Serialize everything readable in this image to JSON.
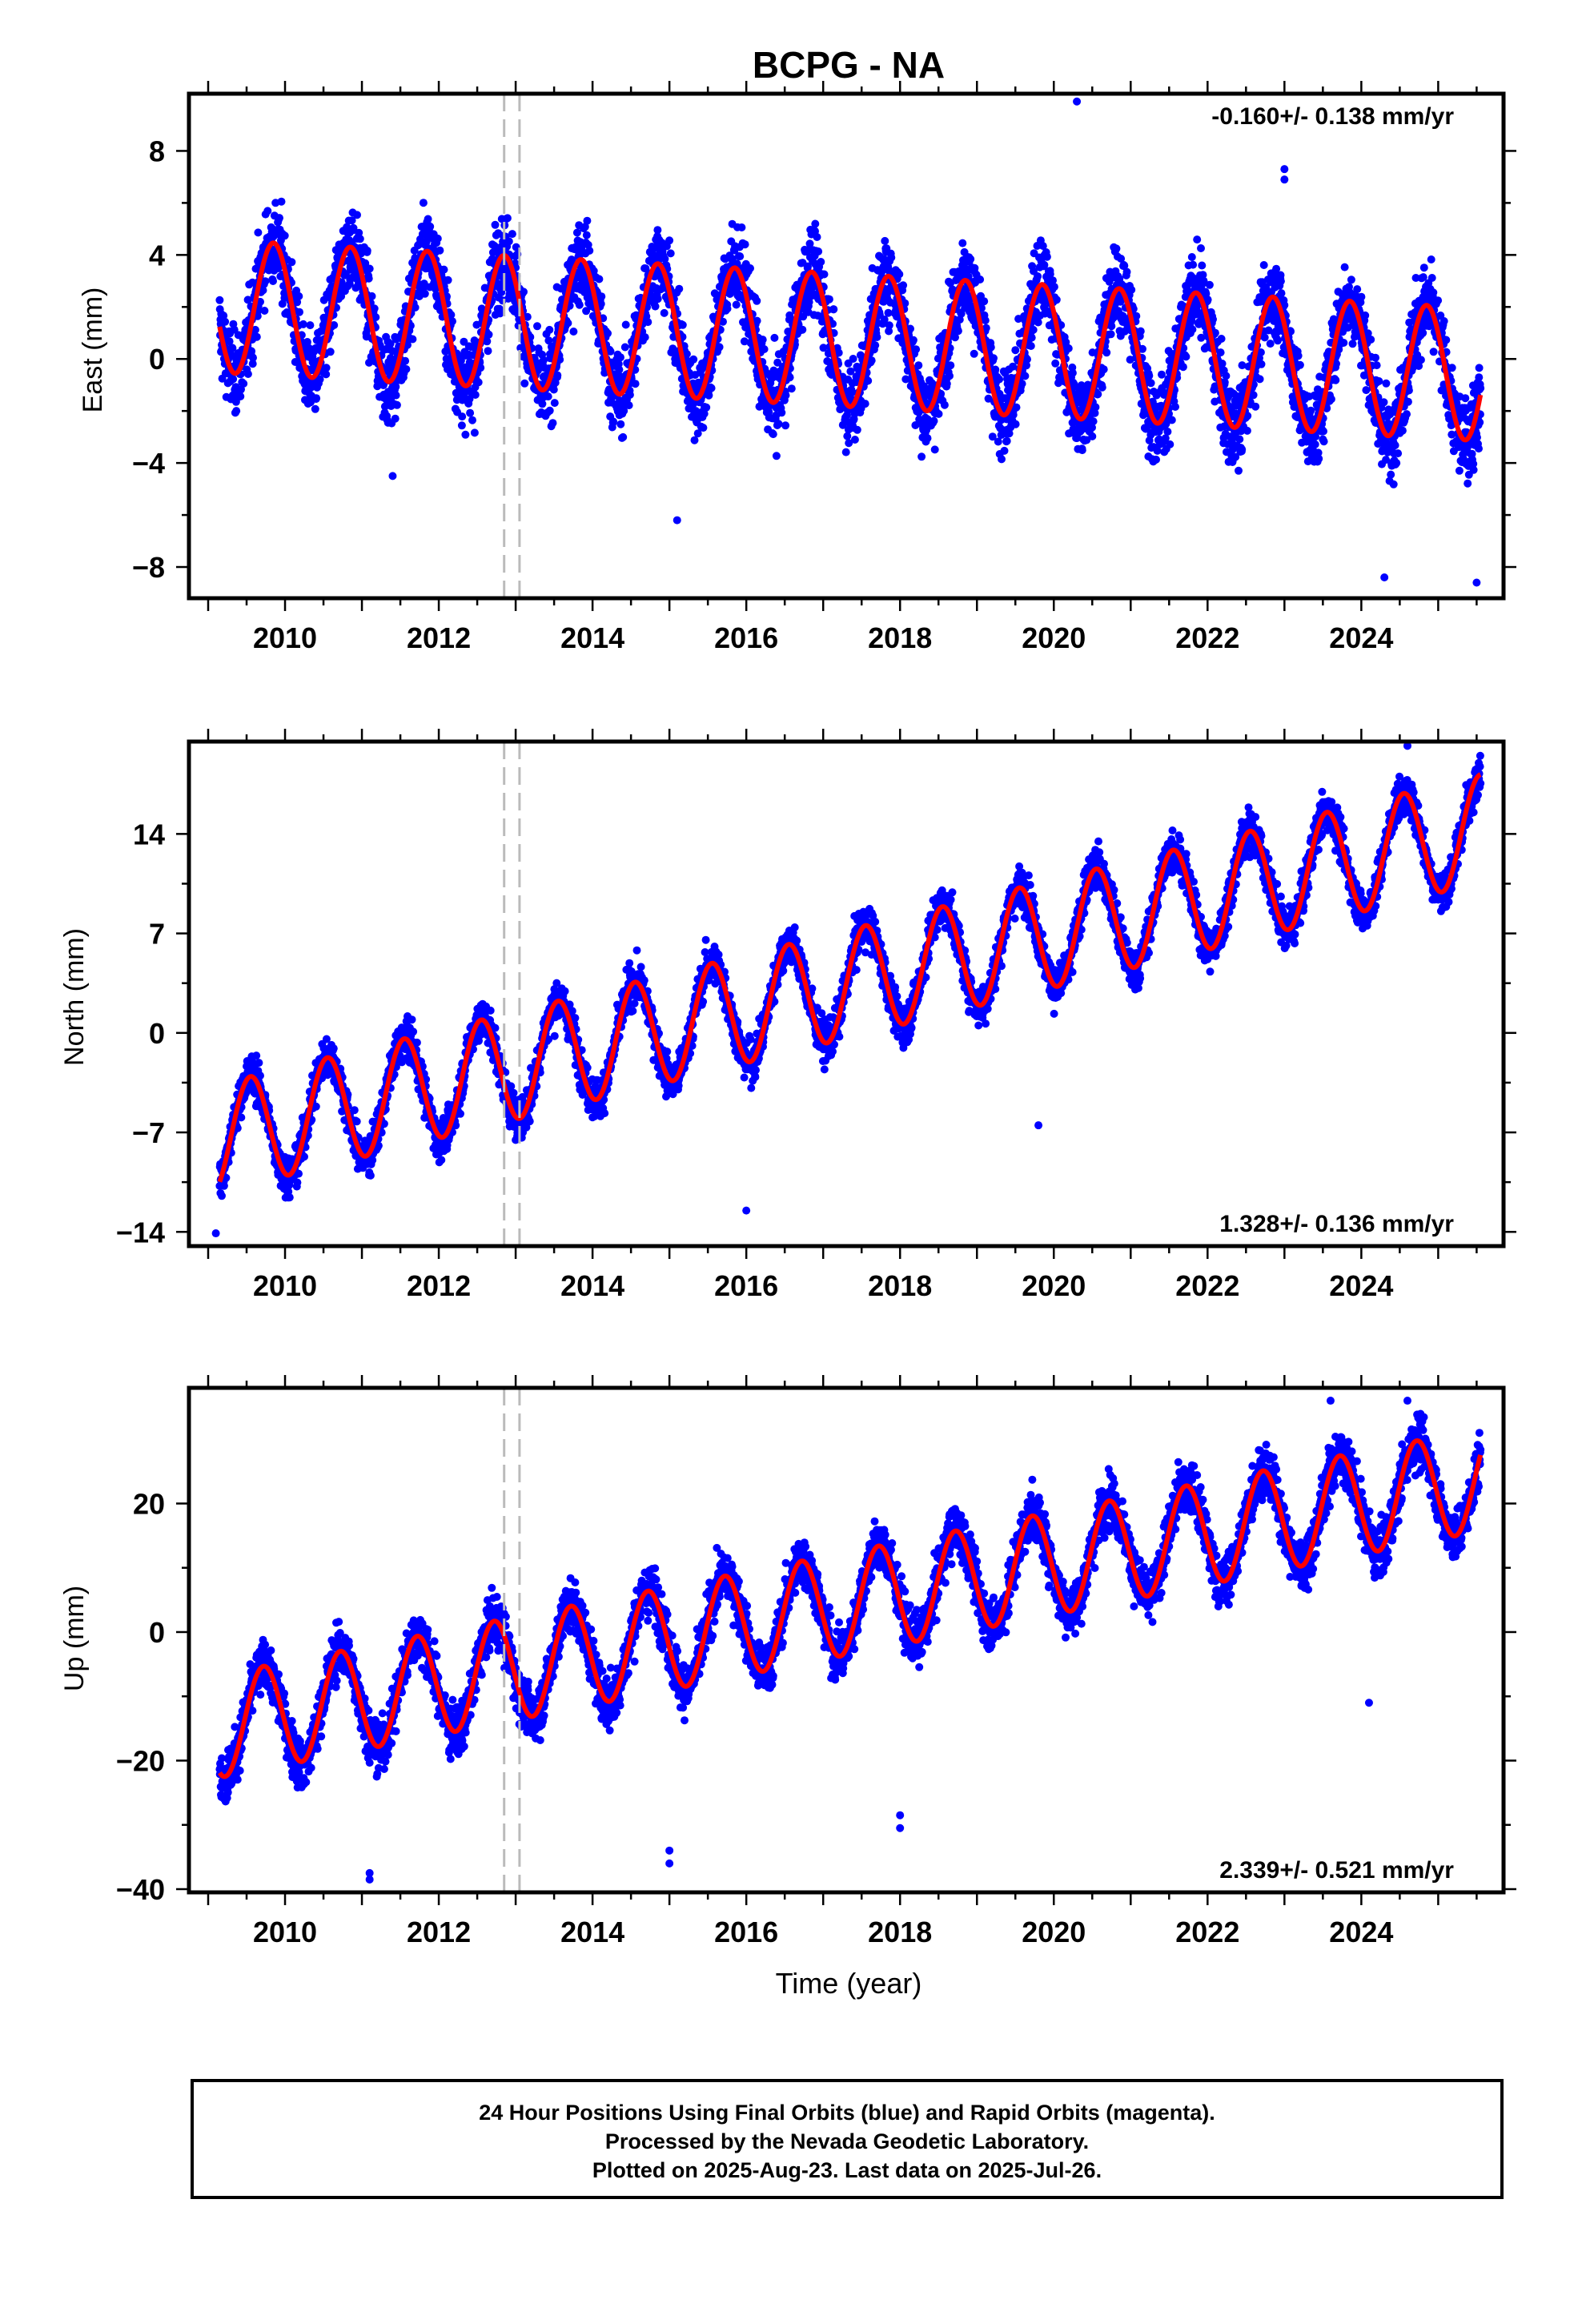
{
  "colors": {
    "points": "#0000ff",
    "model": "#ff0000",
    "step": "#bbbbbb",
    "frame": "#000000"
  },
  "caption": {
    "line1": "24 Hour Positions Using Final Orbits (blue) and Rapid Orbits (magenta).",
    "line2": "Processed by the Nevada Geodetic Laboratory.",
    "line3": "Plotted on 2025-Aug-23. Last data on 2025-Jul-26."
  },
  "chart_data": [
    {
      "type": "scatter",
      "title": "BCPG - NA",
      "xlabel": "",
      "ylabel": "East (mm)",
      "xlim": [
        2008.75,
        2025.85
      ],
      "ylim": [
        -9.2,
        10.2
      ],
      "xticks": [
        2010,
        2012,
        2014,
        2016,
        2018,
        2020,
        2022,
        2024
      ],
      "yticks": [
        -8,
        -4,
        0,
        4,
        8
      ],
      "rate_label": "-0.160+/- 0.138 mm/yr",
      "rate_position": "top-right",
      "grid": false,
      "step_lines": [
        2012.85,
        2013.05
      ],
      "model": {
        "start": 2009.15,
        "end": 2025.55,
        "intercept": 2.05,
        "trend": -0.16,
        "amplitude": 2.55,
        "peak_phase": 0.85,
        "scatter": 1.4
      },
      "series": [
        {
          "values_summary": "daily positions, ~2009.1-2025.6, annual oscillation about a slight downward trend"
        }
      ],
      "outliers": [
        [
          2020.3,
          9.9
        ],
        [
          2023.0,
          7.3
        ],
        [
          2023.0,
          6.9
        ],
        [
          2011.4,
          -4.5
        ],
        [
          2015.1,
          -6.2
        ],
        [
          2024.3,
          -8.4
        ],
        [
          2025.5,
          -8.6
        ]
      ]
    },
    {
      "type": "scatter",
      "title": "",
      "xlabel": "",
      "ylabel": "North (mm)",
      "xlim": [
        2008.75,
        2025.85
      ],
      "ylim": [
        -15,
        20.5
      ],
      "xticks": [
        2010,
        2012,
        2014,
        2016,
        2018,
        2020,
        2022,
        2024
      ],
      "yticks": [
        -14,
        -7,
        0,
        7,
        14
      ],
      "rate_label": "1.328+/- 0.136 mm/yr",
      "rate_position": "bottom-right",
      "grid": false,
      "step_lines": [
        2012.85,
        2013.05
      ],
      "model": {
        "start": 2009.15,
        "end": 2025.55,
        "intercept": -7.6,
        "trend": 1.328,
        "amplitude": 3.8,
        "peak_phase": 0.55,
        "scatter": 1.3
      },
      "series": [
        {
          "values_summary": "daily positions, ~2009.1-2025.6, annual oscillation about an upward trend"
        }
      ],
      "outliers": [
        [
          2024.6,
          20.2
        ],
        [
          2016.0,
          -12.5
        ],
        [
          2019.8,
          -6.5
        ],
        [
          2009.1,
          -14.1
        ]
      ]
    },
    {
      "type": "scatter",
      "title": "",
      "xlabel": "Time (year)",
      "ylabel": "Up (mm)",
      "xlim": [
        2008.75,
        2025.85
      ],
      "ylim": [
        -40.5,
        38
      ],
      "xticks": [
        2010,
        2012,
        2014,
        2016,
        2018,
        2020,
        2022,
        2024
      ],
      "yticks": [
        -40,
        -20,
        0,
        20
      ],
      "rate_label": "2.339+/- 0.521 mm/yr",
      "rate_position": "bottom-right",
      "grid": false,
      "step_lines": [
        2012.85,
        2013.05
      ],
      "model": {
        "start": 2009.15,
        "end": 2025.55,
        "intercept": -15.0,
        "trend": 2.339,
        "amplitude": 8.0,
        "peak_phase": 0.72,
        "scatter": 3.6
      },
      "series": [
        {
          "values_summary": "daily positions, ~2009.1-2025.6, annual oscillation about an upward trend"
        }
      ],
      "outliers": [
        [
          2011.1,
          -38.5
        ],
        [
          2011.1,
          -37.5
        ],
        [
          2015.0,
          -34.0
        ],
        [
          2015.0,
          -36.0
        ],
        [
          2018.0,
          -30.5
        ],
        [
          2018.0,
          -28.5
        ],
        [
          2024.1,
          -11.0
        ],
        [
          2023.6,
          36.0
        ],
        [
          2024.6,
          36.0
        ]
      ]
    }
  ]
}
